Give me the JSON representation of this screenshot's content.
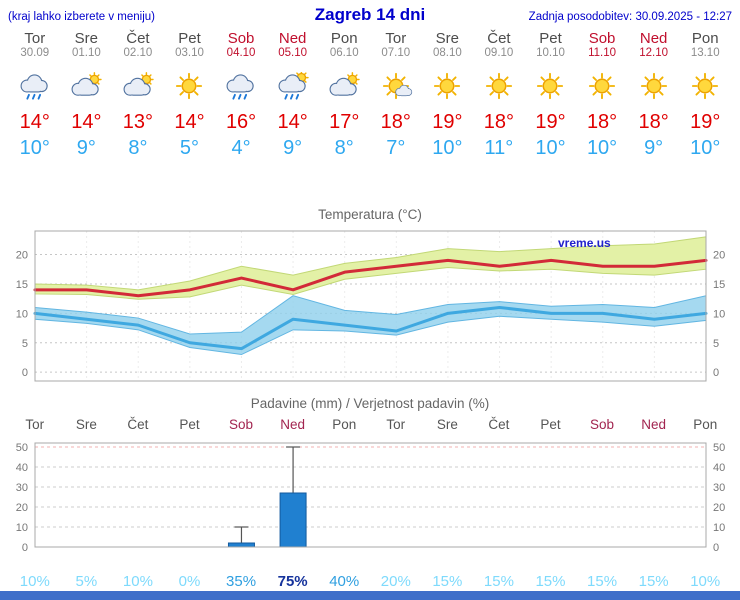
{
  "header": {
    "hint": "(kraj lahko izberete v meniju)",
    "title": "Zagreb 14 dni",
    "updated": "Zadnja posodobitev: 30.09.2025 - 12:27"
  },
  "colors": {
    "header_text": "#0000cc",
    "weekend_top": "#c00f2d",
    "weekend_chart": "#a22550",
    "tmax_text": "#e00000",
    "tmin_text": "#2ea8f0",
    "footer_bar": "#3f6fc9"
  },
  "days": [
    {
      "name": "Tor",
      "date": "30.09",
      "icon": "cloud-rain-icon",
      "tmax": "14°",
      "tmin": "10°",
      "weekend": false
    },
    {
      "name": "Sre",
      "date": "01.10",
      "icon": "cloud-sun-icon",
      "tmax": "14°",
      "tmin": "9°",
      "weekend": false
    },
    {
      "name": "Čet",
      "date": "02.10",
      "icon": "cloud-sun-icon",
      "tmax": "13°",
      "tmin": "8°",
      "weekend": false
    },
    {
      "name": "Pet",
      "date": "03.10",
      "icon": "sun-icon",
      "tmax": "14°",
      "tmin": "5°",
      "weekend": false
    },
    {
      "name": "Sob",
      "date": "04.10",
      "icon": "cloud-rain-icon",
      "tmax": "16°",
      "tmin": "4°",
      "weekend": true
    },
    {
      "name": "Ned",
      "date": "05.10",
      "icon": "cloud-rain-sun-icon",
      "tmax": "14°",
      "tmin": "9°",
      "weekend": true
    },
    {
      "name": "Pon",
      "date": "06.10",
      "icon": "cloud-sun-icon",
      "tmax": "17°",
      "tmin": "8°",
      "weekend": false
    },
    {
      "name": "Tor",
      "date": "07.10",
      "icon": "sun-cloud-icon",
      "tmax": "18°",
      "tmin": "7°",
      "weekend": false
    },
    {
      "name": "Sre",
      "date": "08.10",
      "icon": "sun-icon",
      "tmax": "19°",
      "tmin": "10°",
      "weekend": false
    },
    {
      "name": "Čet",
      "date": "09.10",
      "icon": "sun-icon",
      "tmax": "18°",
      "tmin": "11°",
      "weekend": false
    },
    {
      "name": "Pet",
      "date": "10.10",
      "icon": "sun-icon",
      "tmax": "19°",
      "tmin": "10°",
      "weekend": false
    },
    {
      "name": "Sob",
      "date": "11.10",
      "icon": "sun-icon",
      "tmax": "18°",
      "tmin": "10°",
      "weekend": true
    },
    {
      "name": "Ned",
      "date": "12.10",
      "icon": "sun-icon",
      "tmax": "18°",
      "tmin": "9°",
      "weekend": true
    },
    {
      "name": "Pon",
      "date": "13.10",
      "icon": "sun-icon",
      "tmax": "19°",
      "tmin": "10°",
      "weekend": false
    }
  ],
  "chart_data": [
    {
      "type": "line",
      "title": "Temperatura (°C)",
      "watermark": "vreme.us",
      "categories": [
        "Tor 30.09",
        "Sre 01.10",
        "Čet 02.10",
        "Pet 03.10",
        "Sob 04.10",
        "Ned 05.10",
        "Pon 06.10",
        "Tor 07.10",
        "Sre 08.10",
        "Čet 09.10",
        "Pet 10.10",
        "Sob 11.10",
        "Ned 12.10",
        "Pon 13.10"
      ],
      "ylim": [
        -1.5,
        24
      ],
      "yticks": [
        0,
        5,
        10,
        15,
        20
      ],
      "grid": true,
      "legend": "none",
      "series": [
        {
          "name": "tmax",
          "label": "Max temperatura",
          "color": "#d22a38",
          "values": [
            14,
            14,
            13,
            14,
            16,
            14,
            17,
            18,
            19,
            18,
            19,
            18,
            18,
            19
          ]
        },
        {
          "name": "tmax_band_hi",
          "label": "Max razpon zgoraj",
          "color": "#e3f1a6",
          "values": [
            15,
            14.8,
            14,
            15.5,
            18,
            16.5,
            18.5,
            19.5,
            21,
            20.5,
            21,
            21.5,
            21.8,
            23
          ]
        },
        {
          "name": "tmax_band_lo",
          "label": "Max razpon spodaj",
          "color": "#e3f1a6",
          "values": [
            13.3,
            13.2,
            12.4,
            12.8,
            14.8,
            13.2,
            15.8,
            16.8,
            17.8,
            17.2,
            17.5,
            16.8,
            16.5,
            17.5
          ]
        },
        {
          "name": "tmin",
          "label": "Min temperatura",
          "color": "#3fa8e0",
          "values": [
            10,
            9,
            8,
            5,
            4,
            9,
            8,
            7,
            10,
            11,
            10,
            10,
            9,
            10
          ]
        },
        {
          "name": "tmin_band_hi",
          "label": "Min razpon zgoraj",
          "color": "#8fcfec",
          "values": [
            11,
            10.2,
            9.2,
            6.5,
            6.8,
            13,
            10.5,
            9.8,
            11.5,
            12,
            11.2,
            11.5,
            11,
            13
          ]
        },
        {
          "name": "tmin_band_lo",
          "label": "Min razpon spodaj",
          "color": "#8fcfec",
          "values": [
            9,
            8.3,
            7.2,
            4.2,
            3,
            7.2,
            7,
            6.3,
            8.5,
            9.5,
            9,
            8.5,
            7.8,
            8.8
          ]
        }
      ]
    },
    {
      "type": "bar",
      "title": "Padavine (mm) / Verjetnost padavin (%)",
      "categories": [
        "Tor",
        "Sre",
        "Čet",
        "Pet",
        "Sob",
        "Ned",
        "Pon",
        "Tor",
        "Sre",
        "Čet",
        "Pet",
        "Sob",
        "Ned",
        "Pon"
      ],
      "weekend": [
        false,
        false,
        false,
        false,
        true,
        true,
        false,
        false,
        false,
        false,
        false,
        true,
        true,
        false
      ],
      "values_mm": [
        0,
        0,
        0,
        0,
        2,
        27,
        0,
        0,
        0,
        0,
        0,
        0,
        0,
        0
      ],
      "max_mm": [
        0,
        0,
        0,
        0,
        10,
        50,
        0,
        0,
        0,
        0,
        0,
        0,
        0,
        0
      ],
      "probabilities": [
        "10%",
        "5%",
        "10%",
        "0%",
        "35%",
        "75%",
        "40%",
        "20%",
        "15%",
        "15%",
        "15%",
        "15%",
        "15%",
        "10%"
      ],
      "ylim": [
        0,
        52
      ],
      "yticks": [
        0,
        10,
        20,
        30,
        40,
        50
      ],
      "bar_color": "#2080d0"
    }
  ]
}
